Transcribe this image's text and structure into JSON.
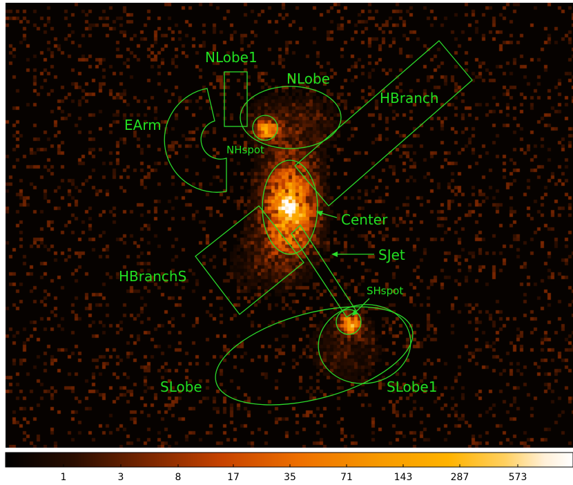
{
  "image": {
    "type": "x-ray count image",
    "background": "#060200"
  },
  "colors": {
    "region": "#2bdc2b",
    "label": "#22e022",
    "colormap": [
      "#000000",
      "#2a0d00",
      "#7a2600",
      "#c64200",
      "#ee7000",
      "#f79a00",
      "#ffb300",
      "#ffd060",
      "#fff0d8",
      "#ffffff"
    ]
  },
  "regions": {
    "nlobe1": "NLobe1",
    "nlobe": "NLobe",
    "hbranch": "HBranch",
    "earm": "EArm",
    "nhspot": "NHspot",
    "center": "Center",
    "sjet": "SJet",
    "hbranchs": "HBranchS",
    "shspot": "SHspot",
    "slobe": "SLobe",
    "slobe1": "SLobe1"
  },
  "colorbar": {
    "ticks": [
      "1",
      "3",
      "8",
      "17",
      "35",
      "71",
      "143",
      "287",
      "573"
    ]
  }
}
